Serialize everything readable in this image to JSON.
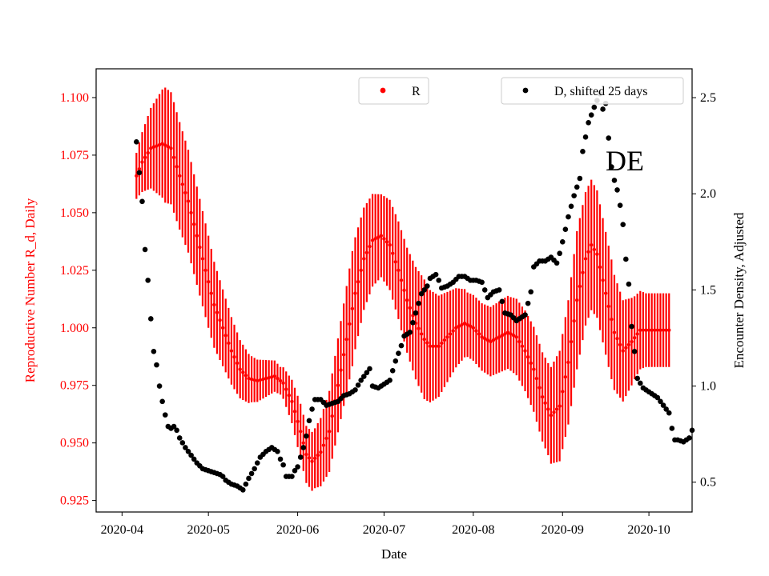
{
  "chart_data": {
    "type": "errorbar-scatter-dual-axis",
    "annotation": "DE",
    "xlabel": "Date",
    "ylabel_left": "Reproductive Number R_d, Daily",
    "ylabel_right": "Encounter Density, Adjusted",
    "x_range_days": [
      -9,
      198
    ],
    "ylim_left": [
      0.92,
      1.1125
    ],
    "ylim_right": [
      0.345,
      2.65
    ],
    "x_ticks": [
      {
        "label": "2020-04",
        "day": 0
      },
      {
        "label": "2020-05",
        "day": 30
      },
      {
        "label": "2020-06",
        "day": 61
      },
      {
        "label": "2020-07",
        "day": 91
      },
      {
        "label": "2020-08",
        "day": 122
      },
      {
        "label": "2020-09",
        "day": 153
      },
      {
        "label": "2020-10",
        "day": 183
      }
    ],
    "y_ticks_left": [
      {
        "label": "0.925",
        "value": 0.925
      },
      {
        "label": "0.950",
        "value": 0.95
      },
      {
        "label": "0.975",
        "value": 0.975
      },
      {
        "label": "1.000",
        "value": 1.0
      },
      {
        "label": "1.025",
        "value": 1.025
      },
      {
        "label": "1.050",
        "value": 1.05
      },
      {
        "label": "1.075",
        "value": 1.075
      },
      {
        "label": "1.100",
        "value": 1.1
      }
    ],
    "y_ticks_right": [
      {
        "label": "0.5",
        "value": 0.5
      },
      {
        "label": "1.0",
        "value": 1.0
      },
      {
        "label": "1.5",
        "value": 1.5
      },
      {
        "label": "2.0",
        "value": 2.0
      },
      {
        "label": "2.5",
        "value": 2.5
      }
    ],
    "legend_left": {
      "label": "R",
      "placement": "top-center",
      "color": "#ff0000"
    },
    "legend_right": {
      "label": "D, shifted 25 days",
      "placement": "top-right",
      "color": "#000000"
    },
    "series_R": {
      "name": "R",
      "color": "#ff0000",
      "start_day": 5,
      "end_day": 190,
      "anchors_center": [
        [
          5,
          1.066
        ],
        [
          7,
          1.072
        ],
        [
          10,
          1.078
        ],
        [
          14,
          1.08
        ],
        [
          17,
          1.078
        ],
        [
          20,
          1.066
        ],
        [
          23,
          1.055
        ],
        [
          26,
          1.04
        ],
        [
          29,
          1.025
        ],
        [
          32,
          1.01
        ],
        [
          35,
          1.0
        ],
        [
          38,
          0.99
        ],
        [
          41,
          0.982
        ],
        [
          44,
          0.978
        ],
        [
          47,
          0.977
        ],
        [
          50,
          0.978
        ],
        [
          53,
          0.979
        ],
        [
          56,
          0.976
        ],
        [
          59,
          0.968
        ],
        [
          62,
          0.955
        ],
        [
          64,
          0.945
        ],
        [
          66,
          0.942
        ],
        [
          69,
          0.946
        ],
        [
          72,
          0.955
        ],
        [
          75,
          0.975
        ],
        [
          78,
          0.995
        ],
        [
          81,
          1.015
        ],
        [
          84,
          1.03
        ],
        [
          87,
          1.038
        ],
        [
          90,
          1.04
        ],
        [
          93,
          1.036
        ],
        [
          96,
          1.025
        ],
        [
          99,
          1.012
        ],
        [
          102,
          1.002
        ],
        [
          105,
          0.995
        ],
        [
          107,
          0.992
        ],
        [
          110,
          0.992
        ],
        [
          113,
          0.996
        ],
        [
          116,
          1.0
        ],
        [
          119,
          1.002
        ],
        [
          122,
          1.0
        ],
        [
          125,
          0.996
        ],
        [
          128,
          0.994
        ],
        [
          131,
          0.996
        ],
        [
          134,
          0.998
        ],
        [
          137,
          0.996
        ],
        [
          140,
          0.99
        ],
        [
          143,
          0.982
        ],
        [
          146,
          0.97
        ],
        [
          149,
          0.962
        ],
        [
          152,
          0.966
        ],
        [
          155,
          0.985
        ],
        [
          158,
          1.012
        ],
        [
          161,
          1.03
        ],
        [
          163,
          1.036
        ],
        [
          165,
          1.032
        ],
        [
          168,
          1.015
        ],
        [
          171,
          0.998
        ],
        [
          174,
          0.99
        ],
        [
          177,
          0.994
        ],
        [
          180,
          0.999
        ],
        [
          190,
          0.999
        ]
      ],
      "anchors_halfwidth": [
        [
          5,
          0.01
        ],
        [
          15,
          0.025
        ],
        [
          30,
          0.02
        ],
        [
          45,
          0.01
        ],
        [
          55,
          0.006
        ],
        [
          62,
          0.012
        ],
        [
          67,
          0.013
        ],
        [
          80,
          0.025
        ],
        [
          90,
          0.018
        ],
        [
          105,
          0.026
        ],
        [
          120,
          0.014
        ],
        [
          135,
          0.016
        ],
        [
          148,
          0.02
        ],
        [
          158,
          0.03
        ],
        [
          170,
          0.026
        ],
        [
          178,
          0.018
        ],
        [
          182,
          0.016
        ],
        [
          190,
          0.016
        ]
      ]
    },
    "series_D": {
      "name": "D, shifted 25 days",
      "color": "#000000",
      "anchors": [
        [
          5,
          2.27
        ],
        [
          6,
          2.11
        ],
        [
          7,
          1.96
        ],
        [
          8,
          1.71
        ],
        [
          9,
          1.55
        ],
        [
          10,
          1.35
        ],
        [
          11,
          1.18
        ],
        [
          12,
          1.11
        ],
        [
          13,
          1.0
        ],
        [
          14,
          0.92
        ],
        [
          15,
          0.85
        ],
        [
          16,
          0.79
        ],
        [
          17,
          0.78
        ],
        [
          18,
          0.79
        ],
        [
          19,
          0.77
        ],
        [
          20,
          0.73
        ],
        [
          22,
          0.68
        ],
        [
          24,
          0.64
        ],
        [
          26,
          0.6
        ],
        [
          28,
          0.57
        ],
        [
          30,
          0.56
        ],
        [
          32,
          0.55
        ],
        [
          34,
          0.54
        ],
        [
          35,
          0.53
        ],
        [
          36,
          0.51
        ],
        [
          38,
          0.49
        ],
        [
          40,
          0.48
        ],
        [
          41,
          0.47
        ],
        [
          42,
          0.46
        ],
        [
          44,
          0.52
        ],
        [
          46,
          0.57
        ],
        [
          48,
          0.63
        ],
        [
          50,
          0.66
        ],
        [
          52,
          0.68
        ],
        [
          54,
          0.66
        ],
        [
          55,
          0.62
        ],
        [
          56,
          0.59
        ],
        [
          57,
          0.53
        ],
        [
          59,
          0.53
        ],
        [
          60,
          0.56
        ],
        [
          61,
          0.58
        ],
        [
          62,
          0.63
        ],
        [
          63,
          0.68
        ],
        [
          64,
          0.74
        ],
        [
          65,
          0.82
        ],
        [
          66,
          0.88
        ],
        [
          67,
          0.93
        ],
        [
          69,
          0.93
        ],
        [
          71,
          0.9
        ],
        [
          73,
          0.91
        ],
        [
          75,
          0.92
        ],
        [
          77,
          0.95
        ],
        [
          79,
          0.96
        ],
        [
          81,
          0.98
        ],
        [
          83,
          1.03
        ],
        [
          85,
          1.07
        ],
        [
          86,
          1.09
        ],
        [
          87,
          1.0
        ],
        [
          89,
          0.99
        ],
        [
          91,
          1.01
        ],
        [
          93,
          1.03
        ],
        [
          95,
          1.13
        ],
        [
          97,
          1.21
        ],
        [
          98,
          1.26
        ],
        [
          100,
          1.28
        ],
        [
          102,
          1.38
        ],
        [
          104,
          1.48
        ],
        [
          106,
          1.52
        ],
        [
          107,
          1.56
        ],
        [
          109,
          1.58
        ],
        [
          110,
          1.55
        ],
        [
          111,
          1.51
        ],
        [
          113,
          1.52
        ],
        [
          115,
          1.54
        ],
        [
          117,
          1.57
        ],
        [
          119,
          1.57
        ],
        [
          121,
          1.55
        ],
        [
          123,
          1.55
        ],
        [
          125,
          1.54
        ],
        [
          127,
          1.46
        ],
        [
          129,
          1.49
        ],
        [
          131,
          1.5
        ],
        [
          133,
          1.38
        ],
        [
          135,
          1.37
        ],
        [
          137,
          1.34
        ],
        [
          139,
          1.36
        ],
        [
          140,
          1.37
        ],
        [
          142,
          1.49
        ],
        [
          143,
          1.62
        ],
        [
          145,
          1.65
        ],
        [
          147,
          1.65
        ],
        [
          149,
          1.67
        ],
        [
          151,
          1.64
        ],
        [
          152,
          1.69
        ],
        [
          153,
          1.75
        ],
        [
          155,
          1.88
        ],
        [
          157,
          1.99
        ],
        [
          159,
          2.08
        ],
        [
          160,
          2.22
        ],
        [
          162,
          2.37
        ],
        [
          163,
          2.41
        ],
        [
          164,
          2.45
        ],
        [
          166,
          2.52
        ],
        [
          167,
          2.44
        ],
        [
          168,
          2.47
        ],
        [
          169,
          2.29
        ],
        [
          170,
          2.14
        ],
        [
          171,
          2.07
        ],
        [
          172,
          2.02
        ],
        [
          173,
          1.94
        ],
        [
          174,
          1.84
        ],
        [
          175,
          1.66
        ],
        [
          176,
          1.53
        ],
        [
          177,
          1.31
        ],
        [
          178,
          1.18
        ],
        [
          179,
          1.04
        ],
        [
          181,
          0.99
        ],
        [
          183,
          0.97
        ],
        [
          185,
          0.95
        ],
        [
          186,
          0.94
        ],
        [
          187,
          0.92
        ],
        [
          188,
          0.9
        ],
        [
          190,
          0.86
        ],
        [
          191,
          0.78
        ],
        [
          192,
          0.72
        ],
        [
          193,
          0.72
        ],
        [
          195,
          0.71
        ],
        [
          197,
          0.73
        ],
        [
          198,
          0.77
        ]
      ]
    }
  }
}
